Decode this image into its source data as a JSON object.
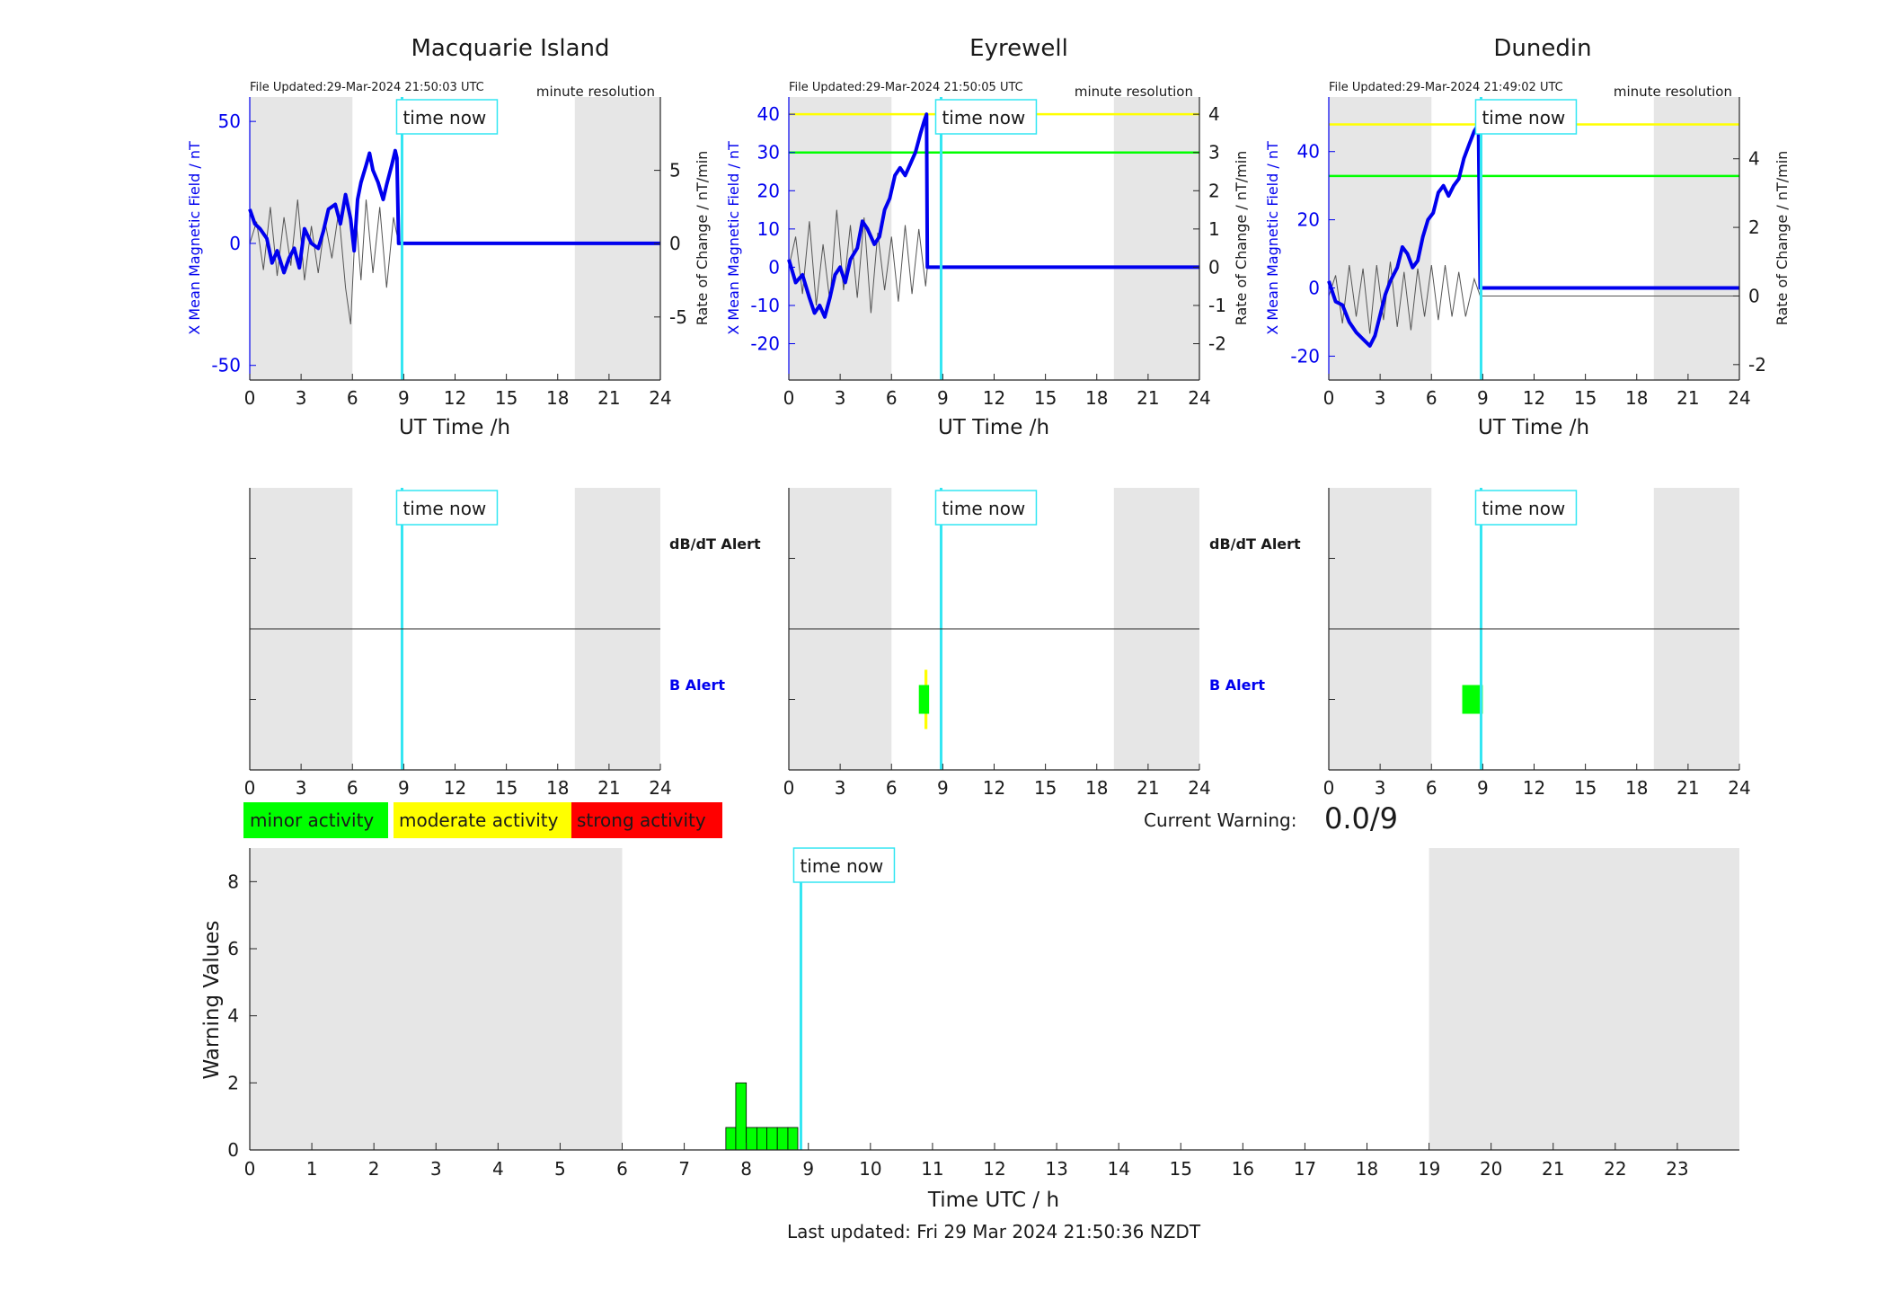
{
  "colors": {
    "night_shading": "#e6e6e6",
    "x_field": "#0000ee",
    "rate": "#555555",
    "time_now": "#33e6f2",
    "minor": "#00ff00",
    "moderate": "#ffff00",
    "strong": "#ff0000",
    "axis": "#262626"
  },
  "time_now_label": "time now",
  "current_warning": {
    "label": "Current Warning:",
    "value": "0.0/9"
  },
  "last_updated": "Last updated: Fri 29 Mar 2024 21:50:36 NZDT",
  "legend": {
    "minor": "minor activity",
    "moderate": "moderate activity",
    "strong": "strong activity"
  },
  "chart_data": [
    {
      "id": "macquarie",
      "type": "line",
      "title": "Macquarie Island",
      "file_updated": "File Updated:29-Mar-2024 21:50:03 UTC",
      "resolution": "minute resolution",
      "xlabel": "UT Time /h",
      "ylabel": "X Mean Magnetic Field / nT",
      "y2label": "Rate of Change / nT/min",
      "xlim": [
        0,
        24
      ],
      "xticks": [
        0,
        3,
        6,
        9,
        12,
        15,
        18,
        21,
        24
      ],
      "ylim": [
        -56,
        60
      ],
      "yticks": [
        -50,
        0,
        50
      ],
      "y2lim": [
        -9.3,
        10
      ],
      "y2ticks": [
        -5,
        0,
        5
      ],
      "night": [
        [
          0,
          6
        ],
        [
          19,
          24
        ]
      ],
      "time_now": 8.9,
      "thresholds": [],
      "x_field": [
        [
          0,
          14
        ],
        [
          0.3,
          8
        ],
        [
          0.6,
          6
        ],
        [
          1,
          2
        ],
        [
          1.3,
          -8
        ],
        [
          1.6,
          -3
        ],
        [
          2,
          -12
        ],
        [
          2.3,
          -6
        ],
        [
          2.6,
          -2
        ],
        [
          2.9,
          -10
        ],
        [
          3.2,
          6
        ],
        [
          3.6,
          0
        ],
        [
          4,
          -2
        ],
        [
          4.3,
          5
        ],
        [
          4.6,
          14
        ],
        [
          5,
          16
        ],
        [
          5.3,
          8
        ],
        [
          5.6,
          20
        ],
        [
          5.9,
          10
        ],
        [
          6.1,
          -3
        ],
        [
          6.3,
          18
        ],
        [
          6.5,
          25
        ],
        [
          6.8,
          32
        ],
        [
          7,
          37
        ],
        [
          7.2,
          30
        ],
        [
          7.5,
          25
        ],
        [
          7.8,
          18
        ],
        [
          8,
          24
        ],
        [
          8.3,
          32
        ],
        [
          8.5,
          38
        ],
        [
          8.6,
          35
        ],
        [
          8.7,
          0
        ],
        [
          24,
          0
        ]
      ],
      "rate": [
        [
          0,
          0
        ],
        [
          0.4,
          1.5
        ],
        [
          0.8,
          -1.8
        ],
        [
          1.2,
          2.5
        ],
        [
          1.6,
          -2.2
        ],
        [
          2,
          1.8
        ],
        [
          2.4,
          -1.5
        ],
        [
          2.8,
          3
        ],
        [
          3.2,
          -2.5
        ],
        [
          3.6,
          1.2
        ],
        [
          4,
          -2
        ],
        [
          4.4,
          1.5
        ],
        [
          4.8,
          -1
        ],
        [
          5.2,
          2.2
        ],
        [
          5.6,
          -3
        ],
        [
          5.9,
          -5.5
        ],
        [
          6.2,
          2
        ],
        [
          6.5,
          -2.5
        ],
        [
          6.8,
          3
        ],
        [
          7.2,
          -2
        ],
        [
          7.6,
          2.5
        ],
        [
          8,
          -3
        ],
        [
          8.4,
          1.8
        ],
        [
          8.7,
          0
        ],
        [
          24,
          0
        ]
      ]
    },
    {
      "id": "eyrewell",
      "type": "line",
      "title": "Eyrewell",
      "file_updated": "File Updated:29-Mar-2024 21:50:05 UTC",
      "resolution": "minute resolution",
      "xlabel": "UT Time /h",
      "ylabel": "X Mean Magnetic Field / nT",
      "y2label": "Rate of Change / nT/min",
      "xlim": [
        0,
        24
      ],
      "xticks": [
        0,
        3,
        6,
        9,
        12,
        15,
        18,
        21,
        24
      ],
      "ylim": [
        -29.5,
        44.5
      ],
      "yticks": [
        -20,
        -10,
        0,
        10,
        20,
        30,
        40
      ],
      "y2lim": [
        -2.95,
        4.45
      ],
      "y2ticks": [
        -2,
        -1,
        0,
        1,
        2,
        3,
        4
      ],
      "night": [
        [
          0,
          6
        ],
        [
          19,
          24
        ]
      ],
      "time_now": 8.9,
      "thresholds": [
        {
          "value": 4,
          "color": "#ffff00"
        },
        {
          "value": 3,
          "color": "#00ff00"
        }
      ],
      "x_field": [
        [
          0,
          2
        ],
        [
          0.4,
          -4
        ],
        [
          0.8,
          -2
        ],
        [
          1.2,
          -8
        ],
        [
          1.5,
          -12
        ],
        [
          1.8,
          -10
        ],
        [
          2.1,
          -13
        ],
        [
          2.4,
          -8
        ],
        [
          2.7,
          -2
        ],
        [
          3,
          0
        ],
        [
          3.3,
          -4
        ],
        [
          3.6,
          2
        ],
        [
          4,
          5
        ],
        [
          4.3,
          12
        ],
        [
          4.6,
          10
        ],
        [
          5,
          6
        ],
        [
          5.3,
          8
        ],
        [
          5.6,
          15
        ],
        [
          5.9,
          18
        ],
        [
          6.2,
          24
        ],
        [
          6.5,
          26
        ],
        [
          6.8,
          24
        ],
        [
          7.1,
          27
        ],
        [
          7.4,
          30
        ],
        [
          7.7,
          35
        ],
        [
          7.9,
          38
        ],
        [
          8.05,
          40
        ],
        [
          8.1,
          0
        ],
        [
          24,
          0
        ]
      ],
      "rate": [
        [
          0,
          0
        ],
        [
          0.4,
          0.8
        ],
        [
          0.8,
          -0.7
        ],
        [
          1.2,
          1.2
        ],
        [
          1.6,
          -1
        ],
        [
          2,
          0.6
        ],
        [
          2.4,
          -0.9
        ],
        [
          2.8,
          1.5
        ],
        [
          3.2,
          -0.6
        ],
        [
          3.6,
          1.1
        ],
        [
          4,
          -0.8
        ],
        [
          4.4,
          1.3
        ],
        [
          4.8,
          -1.2
        ],
        [
          5.2,
          0.9
        ],
        [
          5.6,
          -0.6
        ],
        [
          6,
          0.8
        ],
        [
          6.4,
          -0.9
        ],
        [
          6.8,
          1.1
        ],
        [
          7.2,
          -0.7
        ],
        [
          7.6,
          1
        ],
        [
          8,
          -0.5
        ],
        [
          8.1,
          0
        ],
        [
          24,
          0
        ]
      ]
    },
    {
      "id": "dunedin",
      "type": "line",
      "title": "Dunedin",
      "file_updated": "File Updated:29-Mar-2024 21:49:02 UTC",
      "resolution": "minute resolution",
      "xlabel": "UT Time /h",
      "ylabel": "X Mean Magnetic Field / nT",
      "y2label": "Rate of Change / nT/min",
      "xlim": [
        0,
        24
      ],
      "xticks": [
        0,
        3,
        6,
        9,
        12,
        15,
        18,
        21,
        24
      ],
      "ylim": [
        -27,
        56
      ],
      "yticks": [
        -20,
        0,
        20,
        40
      ],
      "y2lim": [
        -2.45,
        5.8
      ],
      "y2ticks": [
        -2,
        0,
        2,
        4
      ],
      "night": [
        [
          0,
          6
        ],
        [
          19,
          24
        ]
      ],
      "time_now": 8.9,
      "thresholds": [
        {
          "value": 5,
          "color": "#ffff00"
        },
        {
          "value": 3.5,
          "color": "#00ff00"
        }
      ],
      "x_field": [
        [
          0,
          2
        ],
        [
          0.4,
          -4
        ],
        [
          0.8,
          -5
        ],
        [
          1.2,
          -10
        ],
        [
          1.6,
          -13
        ],
        [
          2,
          -15
        ],
        [
          2.4,
          -17
        ],
        [
          2.7,
          -14
        ],
        [
          3,
          -8
        ],
        [
          3.3,
          -2
        ],
        [
          3.6,
          2
        ],
        [
          4,
          6
        ],
        [
          4.3,
          12
        ],
        [
          4.6,
          10
        ],
        [
          4.9,
          6
        ],
        [
          5.2,
          8
        ],
        [
          5.5,
          15
        ],
        [
          5.8,
          20
        ],
        [
          6.1,
          22
        ],
        [
          6.4,
          28
        ],
        [
          6.7,
          30
        ],
        [
          7,
          27
        ],
        [
          7.3,
          30
        ],
        [
          7.6,
          32
        ],
        [
          7.9,
          38
        ],
        [
          8.2,
          42
        ],
        [
          8.5,
          46
        ],
        [
          8.75,
          48
        ],
        [
          8.85,
          0
        ],
        [
          24,
          0
        ]
      ],
      "rate": [
        [
          0,
          0
        ],
        [
          0.4,
          0.6
        ],
        [
          0.8,
          -0.8
        ],
        [
          1.2,
          0.9
        ],
        [
          1.6,
          -0.6
        ],
        [
          2,
          0.8
        ],
        [
          2.4,
          -1.1
        ],
        [
          2.8,
          0.9
        ],
        [
          3.2,
          -0.7
        ],
        [
          3.6,
          1
        ],
        [
          4,
          -0.9
        ],
        [
          4.4,
          0.7
        ],
        [
          4.8,
          -1
        ],
        [
          5.2,
          0.8
        ],
        [
          5.6,
          -0.6
        ],
        [
          6,
          0.9
        ],
        [
          6.4,
          -0.7
        ],
        [
          6.8,
          0.9
        ],
        [
          7.2,
          -0.6
        ],
        [
          7.6,
          0.7
        ],
        [
          8,
          -0.6
        ],
        [
          8.5,
          0.5
        ],
        [
          8.85,
          0
        ],
        [
          24,
          0
        ]
      ]
    },
    {
      "id": "alert_macquarie",
      "type": "bar",
      "xlim": [
        0,
        24
      ],
      "xticks": [
        0,
        3,
        6,
        9,
        12,
        15,
        18,
        21,
        24
      ],
      "night": [
        [
          0,
          6
        ],
        [
          19,
          24
        ]
      ],
      "time_now": 8.9,
      "labels": {
        "dbdt": "dB/dT Alert",
        "b": "B Alert"
      },
      "dbdt_bars": [],
      "b_bars": []
    },
    {
      "id": "alert_eyrewell",
      "type": "bar",
      "xlim": [
        0,
        24
      ],
      "xticks": [
        0,
        3,
        6,
        9,
        12,
        15,
        18,
        21,
        24
      ],
      "night": [
        [
          0,
          6
        ],
        [
          19,
          24
        ]
      ],
      "time_now": 8.9,
      "labels": {
        "dbdt": "dB/dT Alert",
        "b": "B Alert"
      },
      "dbdt_bars": [],
      "b_bars": [
        {
          "start": 7.93,
          "end": 8.1,
          "level": "moderate",
          "span": "full"
        },
        {
          "start": 7.6,
          "end": 8.2,
          "level": "minor",
          "span": "partial"
        }
      ]
    },
    {
      "id": "alert_dunedin",
      "type": "bar",
      "xlim": [
        0,
        24
      ],
      "xticks": [
        0,
        3,
        6,
        9,
        12,
        15,
        18,
        21,
        24
      ],
      "night": [
        [
          0,
          6
        ],
        [
          19,
          24
        ]
      ],
      "time_now": 8.9,
      "labels": {},
      "dbdt_bars": [],
      "b_bars": [
        {
          "start": 7.8,
          "end": 9.0,
          "level": "minor",
          "span": "partial"
        }
      ]
    },
    {
      "id": "warning_values",
      "type": "bar",
      "xlabel": "Time UTC / h",
      "ylabel": "Warning Values",
      "xlim": [
        0,
        24
      ],
      "xticks": [
        0,
        1,
        2,
        3,
        4,
        5,
        6,
        7,
        8,
        9,
        10,
        11,
        12,
        13,
        14,
        15,
        16,
        17,
        18,
        19,
        20,
        21,
        22,
        23
      ],
      "ylim": [
        0,
        9
      ],
      "yticks": [
        0,
        2,
        4,
        6,
        8
      ],
      "night": [
        [
          0,
          6
        ],
        [
          19,
          24
        ]
      ],
      "time_now": 8.88,
      "bars": [
        {
          "start": 7.67,
          "end": 7.83,
          "value": 0.67
        },
        {
          "start": 7.83,
          "end": 8.0,
          "value": 2
        },
        {
          "start": 8.0,
          "end": 8.17,
          "value": 0.67
        },
        {
          "start": 8.17,
          "end": 8.33,
          "value": 0.67
        },
        {
          "start": 8.33,
          "end": 8.5,
          "value": 0.67
        },
        {
          "start": 8.5,
          "end": 8.67,
          "value": 0.67
        },
        {
          "start": 8.67,
          "end": 8.83,
          "value": 0.67
        }
      ]
    }
  ]
}
